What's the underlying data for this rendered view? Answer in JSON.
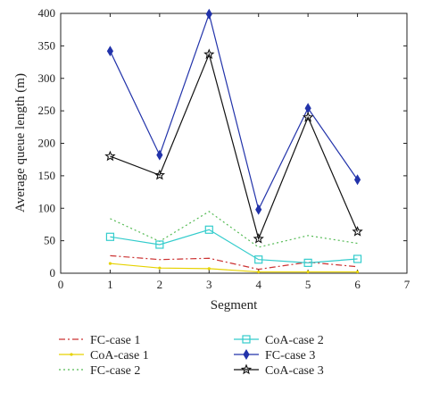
{
  "chart_data": {
    "type": "line",
    "title": "",
    "xlabel": "Segment",
    "ylabel": "Average queue length (m)",
    "xlim": [
      0,
      7
    ],
    "ylim": [
      0,
      400
    ],
    "xticks": [
      0,
      1,
      2,
      3,
      4,
      5,
      6,
      7
    ],
    "yticks": [
      0,
      50,
      100,
      150,
      200,
      250,
      300,
      350,
      400
    ],
    "grid": false,
    "legend_position": "below",
    "x": [
      1,
      2,
      3,
      4,
      5,
      6
    ],
    "series": [
      {
        "name": "FC-case 1",
        "values": [
          27,
          21,
          23,
          6,
          17,
          10
        ],
        "color": "#cc3333",
        "dash": "dashdot",
        "marker": "none"
      },
      {
        "name": "CoA-case 1",
        "values": [
          15,
          8,
          7,
          2,
          2,
          2
        ],
        "color": "#e6d200",
        "dash": "solid",
        "marker": "dot"
      },
      {
        "name": "FC-case 2",
        "values": [
          84,
          49,
          95,
          40,
          58,
          46
        ],
        "color": "#55bb55",
        "dash": "dotted",
        "marker": "none"
      },
      {
        "name": "CoA-case 2",
        "values": [
          56,
          44,
          67,
          21,
          16,
          22
        ],
        "color": "#33cccc",
        "dash": "solid",
        "marker": "square"
      },
      {
        "name": "FC-case 3",
        "values": [
          342,
          182,
          399,
          98,
          254,
          144
        ],
        "color": "#2233aa",
        "dash": "solid",
        "marker": "diamond"
      },
      {
        "name": "CoA-case 3",
        "values": [
          180,
          151,
          337,
          53,
          240,
          64
        ],
        "color": "#111111",
        "dash": "solid",
        "marker": "star"
      }
    ]
  }
}
